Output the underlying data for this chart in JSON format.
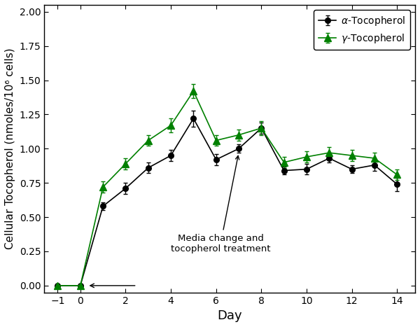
{
  "alpha_x": [
    -1,
    0,
    1,
    2,
    3,
    4,
    5,
    6,
    7,
    8,
    9,
    10,
    11,
    12,
    13,
    14
  ],
  "alpha_y": [
    0.0,
    0.0,
    0.58,
    0.71,
    0.86,
    0.95,
    1.22,
    0.92,
    1.0,
    1.15,
    0.84,
    0.85,
    0.93,
    0.85,
    0.88,
    0.74
  ],
  "alpha_err": [
    0.01,
    0.01,
    0.03,
    0.04,
    0.04,
    0.04,
    0.06,
    0.04,
    0.03,
    0.04,
    0.03,
    0.04,
    0.03,
    0.03,
    0.04,
    0.05
  ],
  "gamma_x": [
    -1,
    0,
    1,
    2,
    3,
    4,
    5,
    6,
    7,
    8,
    9,
    10,
    11,
    12,
    13,
    14
  ],
  "gamma_y": [
    0.0,
    0.0,
    0.72,
    0.89,
    1.06,
    1.17,
    1.42,
    1.06,
    1.1,
    1.15,
    0.9,
    0.94,
    0.97,
    0.95,
    0.93,
    0.81
  ],
  "gamma_err": [
    0.01,
    0.01,
    0.04,
    0.04,
    0.04,
    0.05,
    0.05,
    0.04,
    0.04,
    0.05,
    0.04,
    0.04,
    0.04,
    0.04,
    0.04,
    0.04
  ],
  "alpha_color": "#000000",
  "gamma_color": "#008000",
  "xlabel": "Day",
  "ylabel": "Cellular Tocopherol (nmoles/10⁶ cells)",
  "ylim": [
    -0.05,
    2.05
  ],
  "xlim": [
    -1.6,
    14.8
  ],
  "xticks": [
    -1,
    0,
    2,
    4,
    6,
    8,
    10,
    12,
    14
  ],
  "yticks": [
    0.0,
    0.25,
    0.5,
    0.75,
    1.0,
    1.25,
    1.5,
    1.75,
    2.0
  ],
  "annotation_text": "Media change and\ntocopherol treatment",
  "figsize": [
    6.0,
    4.67
  ],
  "dpi": 100
}
